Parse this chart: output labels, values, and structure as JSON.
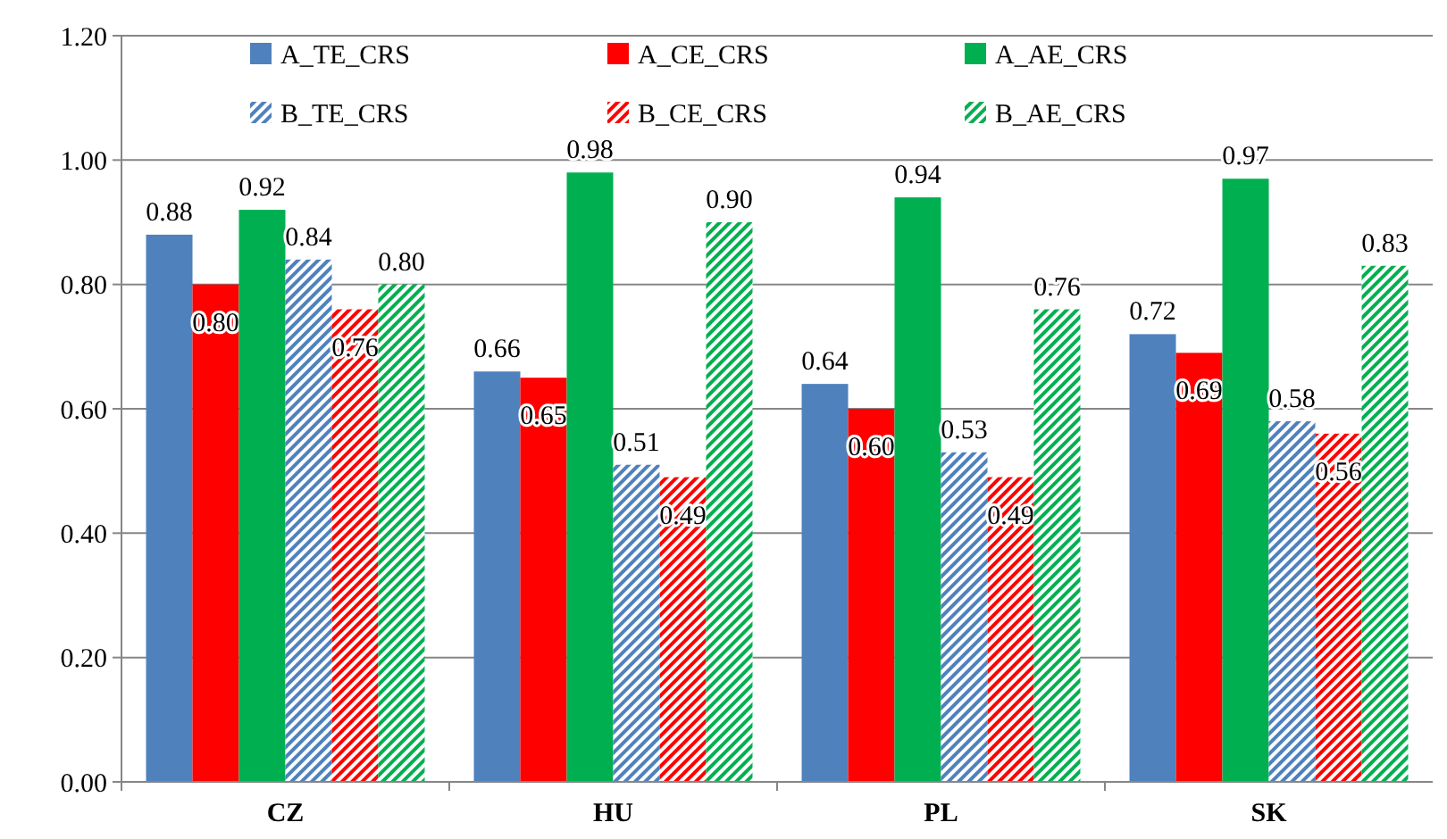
{
  "chart_data": {
    "type": "bar",
    "categories": [
      "CZ",
      "HU",
      "PL",
      "SK"
    ],
    "series": [
      {
        "name": "A_TE_CRS",
        "color": "#4f81bd",
        "values": [
          0.88,
          0.66,
          0.64,
          0.72
        ],
        "value_labels": [
          "0.88",
          "0.66",
          "0.64",
          "0.72"
        ]
      },
      {
        "name": "A_CE_CRS",
        "color": "#ff0000",
        "values": [
          0.8,
          0.65,
          0.6,
          0.69
        ],
        "value_labels": [
          "0.80",
          "0.65",
          "0.60",
          "0.69"
        ]
      },
      {
        "name": "A_AE_CRS",
        "color": "#00b050",
        "values": [
          0.92,
          0.98,
          0.94,
          0.97
        ],
        "value_labels": [
          "0.92",
          "0.98",
          "0.94",
          "0.97"
        ]
      },
      {
        "name": "B_TE_CRS",
        "color": "#4f81bd",
        "values": [
          0.84,
          0.51,
          0.53,
          0.58
        ],
        "value_labels": [
          "0.84",
          "0.51",
          "0.53",
          "0.58"
        ]
      },
      {
        "name": "B_CE_CRS",
        "color": "#ff0000",
        "values": [
          0.76,
          0.49,
          0.49,
          0.56
        ],
        "value_labels": [
          "0.76",
          "0.49",
          "0.49",
          "0.56"
        ]
      },
      {
        "name": "B_AE_CRS",
        "color": "#00b050",
        "values": [
          0.8,
          0.9,
          0.76,
          0.83
        ],
        "value_labels": [
          "0.80",
          "0.90",
          "0.76",
          "0.83"
        ]
      }
    ],
    "ylim": [
      0,
      1.2
    ],
    "yticks": [
      {
        "value": 0,
        "label": "0.00"
      },
      {
        "value": 0.2,
        "label": "0.20"
      },
      {
        "value": 0.4,
        "label": "0.40"
      },
      {
        "value": 0.6,
        "label": "0.60"
      },
      {
        "value": 0.8,
        "label": "0.80"
      },
      {
        "value": 1.0,
        "label": "1.00"
      },
      {
        "value": 1.2,
        "label": "1.20"
      }
    ],
    "grid": "y",
    "legend": "top"
  }
}
